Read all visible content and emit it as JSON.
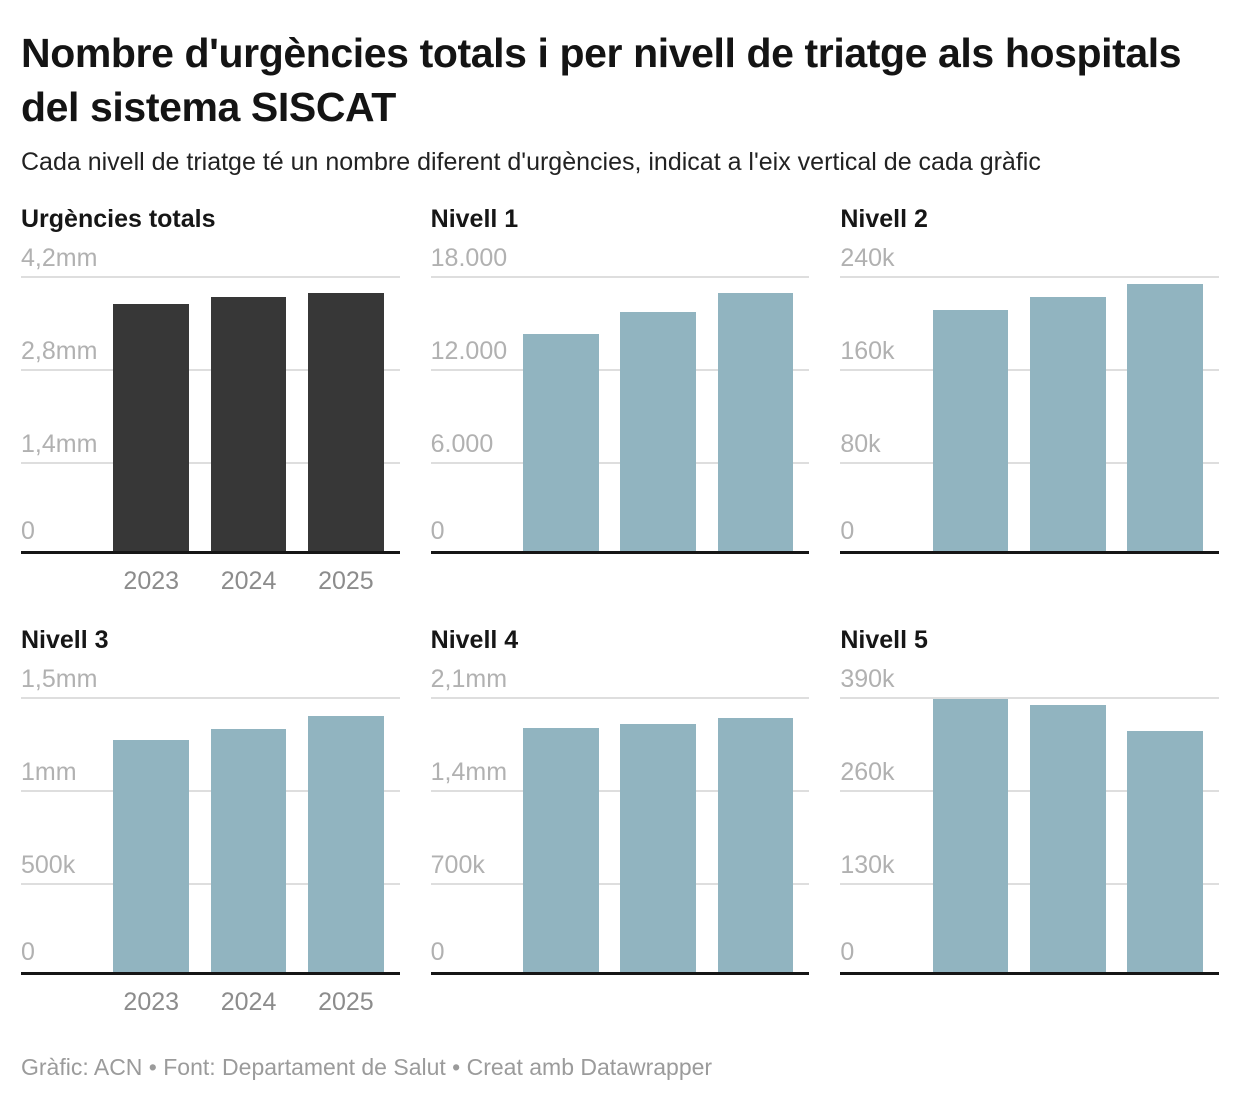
{
  "header": {
    "title": "Nombre d'urgències totals i per nivell de triatge als hospitals del sistema SISCAT",
    "subtitle": "Cada nivell de triatge té un nombre diferent d'urgències, indicat a l'eix vertical de cada gràfic"
  },
  "footer": {
    "text": "Gràfic: ACN • Font: Departament de Salut • Creat amb Datawrapper"
  },
  "colors": {
    "dark_bar": "#373737",
    "light_bar": "#91b4c0",
    "gridline": "#dedede",
    "axis_line": "#161616",
    "y_tick_label": "#b1b1b1",
    "x_tick_label": "#8c8c8c"
  },
  "chart_data": [
    {
      "id": "urgencies-totals",
      "type": "bar",
      "title": "Urgències totals",
      "categories": [
        "2023",
        "2024",
        "2025"
      ],
      "values": [
        3780000,
        3880000,
        3950000
      ],
      "ylim": [
        0,
        4200000
      ],
      "ytick_labels": [
        "4,2mm",
        "2,8mm",
        "1,4mm",
        "0"
      ],
      "bar_color": "#373737",
      "show_x_labels": true,
      "grid": true,
      "legend": "none"
    },
    {
      "id": "nivell-1",
      "type": "bar",
      "title": "Nivell 1",
      "categories": [
        "2023",
        "2024",
        "2025"
      ],
      "values": [
        14300,
        15700,
        16900
      ],
      "ylim": [
        0,
        18000
      ],
      "ytick_labels": [
        "18.000",
        "12.000",
        "6.000",
        "0"
      ],
      "bar_color": "#91b4c0",
      "show_x_labels": false,
      "grid": true,
      "legend": "none"
    },
    {
      "id": "nivell-2",
      "type": "bar",
      "title": "Nivell 2",
      "categories": [
        "2023",
        "2024",
        "2025"
      ],
      "values": [
        211000,
        222000,
        233000
      ],
      "ylim": [
        0,
        240000
      ],
      "ytick_labels": [
        "240k",
        "160k",
        "80k",
        "0"
      ],
      "bar_color": "#91b4c0",
      "show_x_labels": false,
      "grid": true,
      "legend": "none"
    },
    {
      "id": "nivell-3",
      "type": "bar",
      "title": "Nivell 3",
      "categories": [
        "2023",
        "2024",
        "2025"
      ],
      "values": [
        1270000,
        1330000,
        1400000
      ],
      "ylim": [
        0,
        1500000
      ],
      "ytick_labels": [
        "1,5mm",
        "1mm",
        "500k",
        "0"
      ],
      "bar_color": "#91b4c0",
      "show_x_labels": true,
      "grid": true,
      "legend": "none"
    },
    {
      "id": "nivell-4",
      "type": "bar",
      "title": "Nivell 4",
      "categories": [
        "2023",
        "2024",
        "2025"
      ],
      "values": [
        1870000,
        1900000,
        1940000
      ],
      "ylim": [
        0,
        2100000
      ],
      "ytick_labels": [
        "2,1mm",
        "1,4mm",
        "700k",
        "0"
      ],
      "bar_color": "#91b4c0",
      "show_x_labels": false,
      "grid": true,
      "legend": "none"
    },
    {
      "id": "nivell-5",
      "type": "bar",
      "title": "Nivell 5",
      "categories": [
        "2023",
        "2024",
        "2025"
      ],
      "values": [
        387000,
        379000,
        342000
      ],
      "ylim": [
        0,
        390000
      ],
      "ytick_labels": [
        "390k",
        "260k",
        "130k",
        "0"
      ],
      "bar_color": "#91b4c0",
      "show_x_labels": false,
      "grid": true,
      "legend": "none"
    }
  ]
}
